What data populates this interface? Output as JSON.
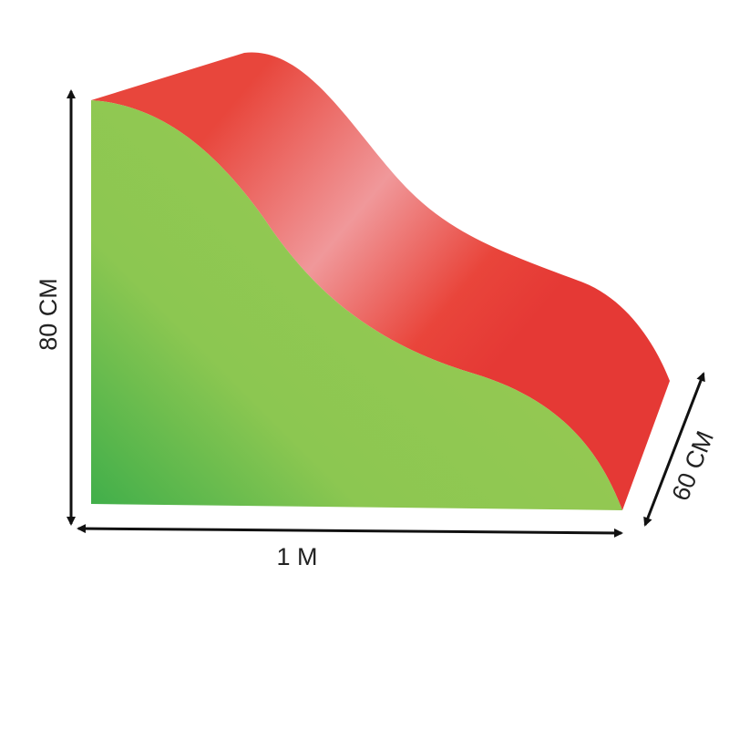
{
  "dimensions": {
    "height": "80 CM",
    "width": "1 M",
    "depth": "60 CM"
  }
}
